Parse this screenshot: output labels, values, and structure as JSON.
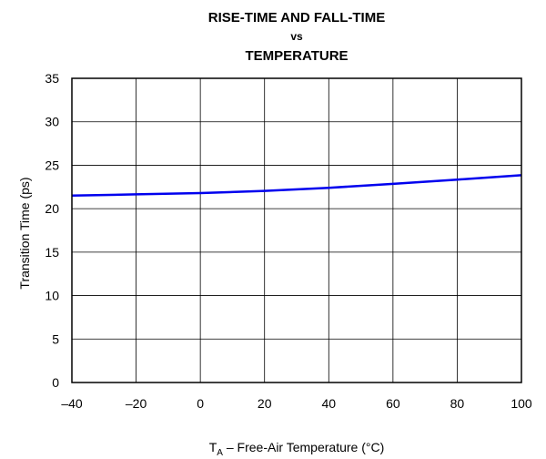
{
  "chart_data": {
    "type": "line",
    "title": [
      "RISE-TIME AND FALL-TIME",
      "vs",
      "TEMPERATURE"
    ],
    "xlabel": {
      "main": "T",
      "sub": "A",
      "rest": " – Free-Air Temperature (°C)"
    },
    "ylabel": "Transition Time (ps)",
    "xlim": [
      -40,
      100
    ],
    "ylim": [
      0,
      35
    ],
    "x_ticks": [
      -40,
      -20,
      0,
      20,
      40,
      60,
      80,
      100
    ],
    "x_tick_labels": [
      "–40",
      "–20",
      "0",
      "20",
      "40",
      "60",
      "80",
      "100"
    ],
    "y_ticks": [
      0,
      5,
      10,
      15,
      20,
      25,
      30,
      35
    ],
    "y_tick_labels": [
      "0",
      "5",
      "10",
      "15",
      "20",
      "25",
      "30",
      "35"
    ],
    "grid": true,
    "series": [
      {
        "color": "#0000ee",
        "x": [
          -40,
          -20,
          0,
          20,
          40,
          60,
          80,
          100
        ],
        "y": [
          21.5,
          21.65,
          21.8,
          22.05,
          22.4,
          22.85,
          23.35,
          23.85
        ]
      }
    ]
  }
}
